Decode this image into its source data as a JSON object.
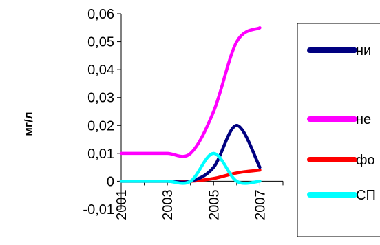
{
  "chart_data": {
    "type": "line",
    "ylabel": "мг/л",
    "xlabel": "",
    "title": "",
    "ylim": [
      -0.01,
      0.06
    ],
    "y_ticks": [
      "-0,01",
      "0",
      "0,01",
      "0,02",
      "0,03",
      "0,04",
      "0,05",
      "0,06"
    ],
    "y_tick_values": [
      -0.01,
      0,
      0.01,
      0.02,
      0.03,
      0.04,
      0.05,
      0.06
    ],
    "x_ticks": [
      "2001",
      "2003",
      "2005",
      "2007"
    ],
    "x_tick_values": [
      2001,
      2003,
      2005,
      2007
    ],
    "x_range": [
      2001,
      2008
    ],
    "grid": false,
    "legend_position": "right",
    "series": [
      {
        "name": "ни",
        "color": "#000080",
        "x": [
          2001,
          2002,
          2003,
          2004,
          2005,
          2006,
          2007
        ],
        "values": [
          0,
          0,
          0,
          0,
          0.005,
          0.02,
          0.005
        ]
      },
      {
        "name": "не",
        "color": "#ff00ff",
        "x": [
          2001,
          2002,
          2003,
          2004,
          2005,
          2006,
          2007
        ],
        "values": [
          0.01,
          0.01,
          0.01,
          0.01,
          0.025,
          0.05,
          0.055
        ]
      },
      {
        "name": "фо",
        "color": "#ff0000",
        "x": [
          2001,
          2002,
          2003,
          2004,
          2005,
          2006,
          2007
        ],
        "values": [
          0,
          0,
          0,
          0,
          0.001,
          0.003,
          0.004
        ]
      },
      {
        "name": "СП",
        "color": "#00ffff",
        "x": [
          2001,
          2002,
          2003,
          2004,
          2005,
          2006,
          2007
        ],
        "values": [
          0,
          0,
          0,
          0,
          0.01,
          0,
          0
        ]
      }
    ]
  }
}
